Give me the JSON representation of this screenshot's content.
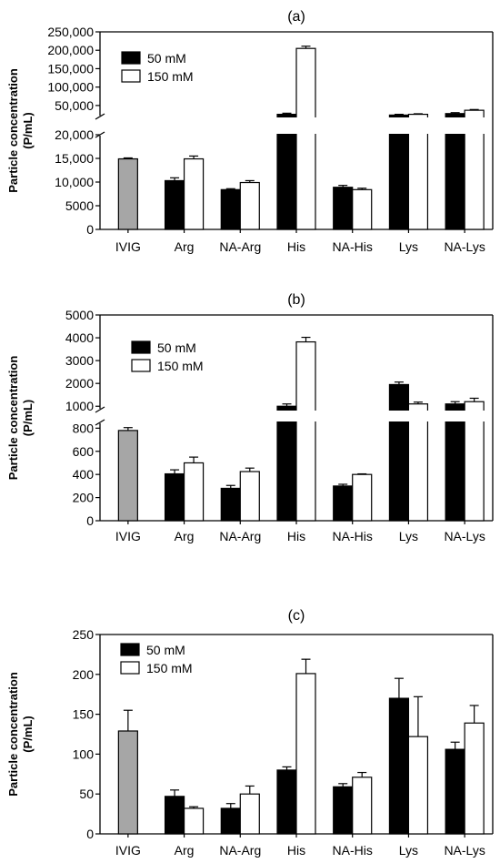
{
  "colors": {
    "ivig": "#a6a6a6",
    "mM50": "#000000",
    "mM150": "#ffffff",
    "axis": "#000000"
  },
  "chart_data": [
    {
      "type": "bar",
      "panel_label": "(a)",
      "ylabel": [
        "Particle concentration",
        "(P/mL)"
      ],
      "categories": [
        "IVIG",
        "Arg",
        "NA-Arg",
        "His",
        "NA-His",
        "Lys",
        "NA-Lys"
      ],
      "legend": [
        "50 mM",
        "150 mM"
      ],
      "legend_position": "top-left",
      "broken_axis": true,
      "lower_ylim": [
        0,
        20000
      ],
      "upper_ylim": [
        20000,
        250000
      ],
      "lower_ticks": [
        0,
        5000,
        10000,
        15000,
        20000
      ],
      "lower_tick_labels": [
        "0",
        "5000",
        "10,000",
        "15,000",
        "20,000"
      ],
      "upper_ticks": [
        50000,
        100000,
        150000,
        200000,
        250000
      ],
      "upper_tick_labels": [
        "50,000",
        "100,000",
        "150,000",
        "200,000",
        "250,000"
      ],
      "ivig": {
        "value": 14900,
        "error": 200
      },
      "series": [
        {
          "name": "50 mM",
          "values": [
            null,
            10300,
            8400,
            26000,
            8900,
            24000,
            28000
          ],
          "errors": [
            null,
            600,
            200,
            3000,
            400,
            2000,
            2500
          ]
        },
        {
          "name": "150 mM",
          "values": [
            null,
            14900,
            9900,
            205000,
            8400,
            26000,
            37000
          ],
          "errors": [
            null,
            600,
            400,
            6000,
            300,
            1500,
            2000
          ]
        }
      ]
    },
    {
      "type": "bar",
      "panel_label": "(b)",
      "ylabel": [
        "Particle concentration",
        "(P/mL)"
      ],
      "categories": [
        "IVIG",
        "Arg",
        "NA-Arg",
        "His",
        "NA-His",
        "Lys",
        "NA-Lys"
      ],
      "legend": [
        "50 mM",
        "150 mM"
      ],
      "legend_position": "top-left",
      "broken_axis": true,
      "lower_ylim": [
        0,
        850
      ],
      "upper_ylim": [
        850,
        5000
      ],
      "lower_ticks": [
        0,
        200,
        400,
        600,
        800
      ],
      "lower_tick_labels": [
        "0",
        "200",
        "400",
        "600",
        "800"
      ],
      "upper_ticks": [
        1000,
        2000,
        3000,
        4000,
        5000
      ],
      "upper_tick_labels": [
        "1000",
        "2000",
        "3000",
        "4000",
        "5000"
      ],
      "ivig": {
        "value": 780,
        "error": 25
      },
      "series": [
        {
          "name": "50 mM",
          "values": [
            null,
            405,
            280,
            1000,
            300,
            1950,
            1100
          ],
          "errors": [
            null,
            35,
            25,
            100,
            15,
            110,
            100
          ]
        },
        {
          "name": "150 mM",
          "values": [
            null,
            500,
            425,
            3820,
            400,
            1100,
            1200
          ],
          "errors": [
            null,
            50,
            30,
            200,
            5,
            80,
            150
          ]
        }
      ]
    },
    {
      "type": "bar",
      "panel_label": "(c)",
      "ylabel": [
        "Particle concentration",
        "(P/mL)"
      ],
      "categories": [
        "IVIG",
        "Arg",
        "NA-Arg",
        "His",
        "NA-His",
        "Lys",
        "NA-Lys"
      ],
      "legend": [
        "50 mM",
        "150 mM"
      ],
      "legend_position": "top-left",
      "broken_axis": false,
      "ylim": [
        0,
        250
      ],
      "ticks": [
        0,
        50,
        100,
        150,
        200,
        250
      ],
      "tick_labels": [
        "0",
        "50",
        "100",
        "150",
        "200",
        "250"
      ],
      "ivig": {
        "value": 129,
        "error": 26
      },
      "series": [
        {
          "name": "50 mM",
          "values": [
            null,
            47,
            32,
            80,
            59,
            170,
            106
          ],
          "errors": [
            null,
            8,
            6,
            4,
            4,
            25,
            9
          ]
        },
        {
          "name": "150 mM",
          "values": [
            null,
            32,
            50,
            201,
            71,
            122,
            139
          ],
          "errors": [
            null,
            2,
            10,
            18,
            6,
            50,
            22
          ]
        }
      ]
    }
  ]
}
